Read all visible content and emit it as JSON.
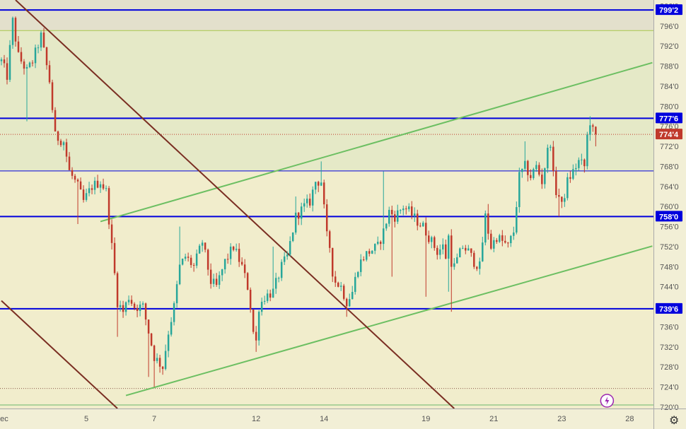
{
  "chart_data": {
    "type": "candlestick",
    "instrument_hint": "",
    "x_tick_labels": [
      {
        "label": "Dec",
        "idx": 0
      },
      {
        "label": "5",
        "idx": 30
      },
      {
        "label": "7",
        "idx": 54
      },
      {
        "label": "12",
        "idx": 90
      },
      {
        "label": "14",
        "idx": 114
      },
      {
        "label": "19",
        "idx": 150
      },
      {
        "label": "21",
        "idx": 174
      },
      {
        "label": "23",
        "idx": 198
      },
      {
        "label": "28",
        "idx": 222
      }
    ],
    "y_ticks": [
      720,
      724,
      728,
      732,
      736,
      740,
      744,
      748,
      752,
      756,
      760,
      764,
      768,
      772,
      776,
      780,
      784,
      788,
      792,
      796,
      800
    ],
    "ylim": [
      719.7,
      801.2
    ],
    "bar_count_visible": 231,
    "levels": [
      {
        "value": 799.2,
        "label": "799'2",
        "color": "#0000dd",
        "style": "solid"
      },
      {
        "value": 777.6,
        "label": "777'6",
        "color": "#0000dd",
        "style": "solid"
      },
      {
        "value": 758.0,
        "label": "758'0",
        "color": "#0000dd",
        "style": "solid"
      },
      {
        "value": 739.6,
        "label": "739'6",
        "color": "#0000dd",
        "style": "solid"
      },
      {
        "value": 767.1,
        "label": "",
        "color": "#0000dd",
        "style": "thin"
      },
      {
        "value": 795.1,
        "label": "",
        "color": "#a8c84a",
        "style": "thin"
      },
      {
        "value": 774.4,
        "label": "774'4",
        "color": "#c0392b",
        "style": "dotted"
      },
      {
        "value": 723.7,
        "label": "",
        "color": "#8a5a4a",
        "style": "dotted"
      },
      {
        "value": 720.4,
        "label": "",
        "color": "#6ab86a",
        "style": "thin"
      }
    ],
    "zones": [
      {
        "from": 795.1,
        "to": 801.2,
        "color": "#e3e0cc"
      },
      {
        "from": 767.1,
        "to": 795.1,
        "color": "#e5e9c7"
      },
      {
        "from": 719.7,
        "to": 767.1,
        "color": "#f1edcc"
      }
    ],
    "trendlines": [
      {
        "color": "#6cbf62",
        "from": {
          "idx": 35,
          "value": 757.0
        },
        "to": {
          "idx": 230,
          "value": 788.7
        }
      },
      {
        "color": "#6cbf62",
        "from": {
          "idx": 44,
          "value": 722.3
        },
        "to": {
          "idx": 230,
          "value": 752.1
        }
      },
      {
        "color": "#7a2e22",
        "from": {
          "idx": 5,
          "value": 801.2
        },
        "to": {
          "idx": 160,
          "value": 719.7
        }
      },
      {
        "color": "#7a2e22",
        "from": {
          "idx": 0,
          "value": 741.2
        },
        "to": {
          "idx": 41,
          "value": 719.7
        }
      }
    ],
    "anchors": [
      {
        "idx": 0,
        "v": 789
      },
      {
        "idx": 2,
        "v": 786
      },
      {
        "idx": 4,
        "v": 797
      },
      {
        "idx": 6,
        "v": 790
      },
      {
        "idx": 9,
        "v": 787
      },
      {
        "idx": 11,
        "v": 789
      },
      {
        "idx": 14,
        "v": 794
      },
      {
        "idx": 17,
        "v": 785
      },
      {
        "idx": 19,
        "v": 774
      },
      {
        "idx": 22,
        "v": 773
      },
      {
        "idx": 24,
        "v": 767
      },
      {
        "idx": 27,
        "v": 764
      },
      {
        "idx": 29,
        "v": 761
      },
      {
        "idx": 32,
        "v": 764
      },
      {
        "idx": 35,
        "v": 765
      },
      {
        "idx": 37,
        "v": 763
      },
      {
        "idx": 39,
        "v": 752
      },
      {
        "idx": 41,
        "v": 741
      },
      {
        "idx": 43,
        "v": 739
      },
      {
        "idx": 45,
        "v": 742
      },
      {
        "idx": 47,
        "v": 740
      },
      {
        "idx": 50,
        "v": 740
      },
      {
        "idx": 52,
        "v": 735
      },
      {
        "idx": 54,
        "v": 730
      },
      {
        "idx": 57,
        "v": 728
      },
      {
        "idx": 59,
        "v": 735
      },
      {
        "idx": 61,
        "v": 740
      },
      {
        "idx": 63,
        "v": 748
      },
      {
        "idx": 65,
        "v": 750
      },
      {
        "idx": 68,
        "v": 748
      },
      {
        "idx": 71,
        "v": 753
      },
      {
        "idx": 74,
        "v": 745
      },
      {
        "idx": 76,
        "v": 744
      },
      {
        "idx": 79,
        "v": 749
      },
      {
        "idx": 82,
        "v": 752
      },
      {
        "idx": 85,
        "v": 748
      },
      {
        "idx": 87,
        "v": 744
      },
      {
        "idx": 88,
        "v": 740
      },
      {
        "idx": 89,
        "v": 735
      },
      {
        "idx": 90,
        "v": 733
      },
      {
        "idx": 91,
        "v": 740
      },
      {
        "idx": 93,
        "v": 742
      },
      {
        "idx": 96,
        "v": 743
      },
      {
        "idx": 99,
        "v": 748
      },
      {
        "idx": 101,
        "v": 750
      },
      {
        "idx": 104,
        "v": 758
      },
      {
        "idx": 107,
        "v": 760
      },
      {
        "idx": 109,
        "v": 761
      },
      {
        "idx": 111,
        "v": 765
      },
      {
        "idx": 113,
        "v": 765
      },
      {
        "idx": 115,
        "v": 754
      },
      {
        "idx": 116,
        "v": 752
      },
      {
        "idx": 117,
        "v": 747
      },
      {
        "idx": 118,
        "v": 745
      },
      {
        "idx": 120,
        "v": 744
      },
      {
        "idx": 122,
        "v": 741
      },
      {
        "idx": 124,
        "v": 743
      },
      {
        "idx": 126,
        "v": 748
      },
      {
        "idx": 128,
        "v": 750
      },
      {
        "idx": 130,
        "v": 751
      },
      {
        "idx": 133,
        "v": 752
      },
      {
        "idx": 135,
        "v": 755
      },
      {
        "idx": 137,
        "v": 759
      },
      {
        "idx": 139,
        "v": 758
      },
      {
        "idx": 142,
        "v": 760
      },
      {
        "idx": 144,
        "v": 759
      },
      {
        "idx": 147,
        "v": 757
      },
      {
        "idx": 149,
        "v": 756
      },
      {
        "idx": 151,
        "v": 754
      },
      {
        "idx": 154,
        "v": 751
      },
      {
        "idx": 156,
        "v": 752
      },
      {
        "idx": 157,
        "v": 750
      },
      {
        "idx": 158,
        "v": 754
      },
      {
        "idx": 159,
        "v": 749
      },
      {
        "idx": 160,
        "v": 748
      },
      {
        "idx": 163,
        "v": 752
      },
      {
        "idx": 165,
        "v": 751
      },
      {
        "idx": 167,
        "v": 749
      },
      {
        "idx": 169,
        "v": 748
      },
      {
        "idx": 171,
        "v": 758
      },
      {
        "idx": 173,
        "v": 752
      },
      {
        "idx": 175,
        "v": 754
      },
      {
        "idx": 177,
        "v": 753
      },
      {
        "idx": 179,
        "v": 752
      },
      {
        "idx": 181,
        "v": 755
      },
      {
        "idx": 183,
        "v": 766
      },
      {
        "idx": 185,
        "v": 768
      },
      {
        "idx": 187,
        "v": 766
      },
      {
        "idx": 189,
        "v": 768
      },
      {
        "idx": 191,
        "v": 765
      },
      {
        "idx": 193,
        "v": 771
      },
      {
        "idx": 194,
        "v": 773
      },
      {
        "idx": 195,
        "v": 766
      },
      {
        "idx": 196,
        "v": 763
      },
      {
        "idx": 197,
        "v": 762
      },
      {
        "idx": 198,
        "v": 760
      },
      {
        "idx": 200,
        "v": 765
      },
      {
        "idx": 202,
        "v": 767
      },
      {
        "idx": 204,
        "v": 769
      },
      {
        "idx": 206,
        "v": 768
      },
      {
        "idx": 207,
        "v": 774
      },
      {
        "idx": 208,
        "v": 777
      },
      {
        "idx": 209,
        "v": 775
      },
      {
        "idx": 210,
        "v": 774.4
      }
    ],
    "spikes": [
      {
        "idx": 9,
        "v": 777
      },
      {
        "idx": 27,
        "v": 756.5
      },
      {
        "idx": 41,
        "v": 734
      },
      {
        "idx": 52,
        "v": 726
      },
      {
        "idx": 54,
        "v": 724
      },
      {
        "idx": 63,
        "v": 756
      },
      {
        "idx": 90,
        "v": 731
      },
      {
        "idx": 96,
        "v": 752
      },
      {
        "idx": 104,
        "v": 762
      },
      {
        "idx": 113,
        "v": 769
      },
      {
        "idx": 122,
        "v": 738
      },
      {
        "idx": 135,
        "v": 767
      },
      {
        "idx": 138,
        "v": 746
      },
      {
        "idx": 150,
        "v": 742
      },
      {
        "idx": 158,
        "v": 743
      },
      {
        "idx": 159,
        "v": 739
      },
      {
        "idx": 172,
        "v": 760.5
      },
      {
        "idx": 185,
        "v": 773
      },
      {
        "idx": 186,
        "v": 765
      },
      {
        "idx": 197,
        "v": 758
      },
      {
        "idx": 208,
        "v": 778
      },
      {
        "idx": 210,
        "v": 772
      }
    ],
    "colors": {
      "up": "#26a69a",
      "down": "#c0392b",
      "level_tag": "#0000dd",
      "last_tag": "#c0392b"
    }
  },
  "ui": {
    "settings_icon": "gear-icon",
    "lightning_icon": "lightning-icon"
  }
}
